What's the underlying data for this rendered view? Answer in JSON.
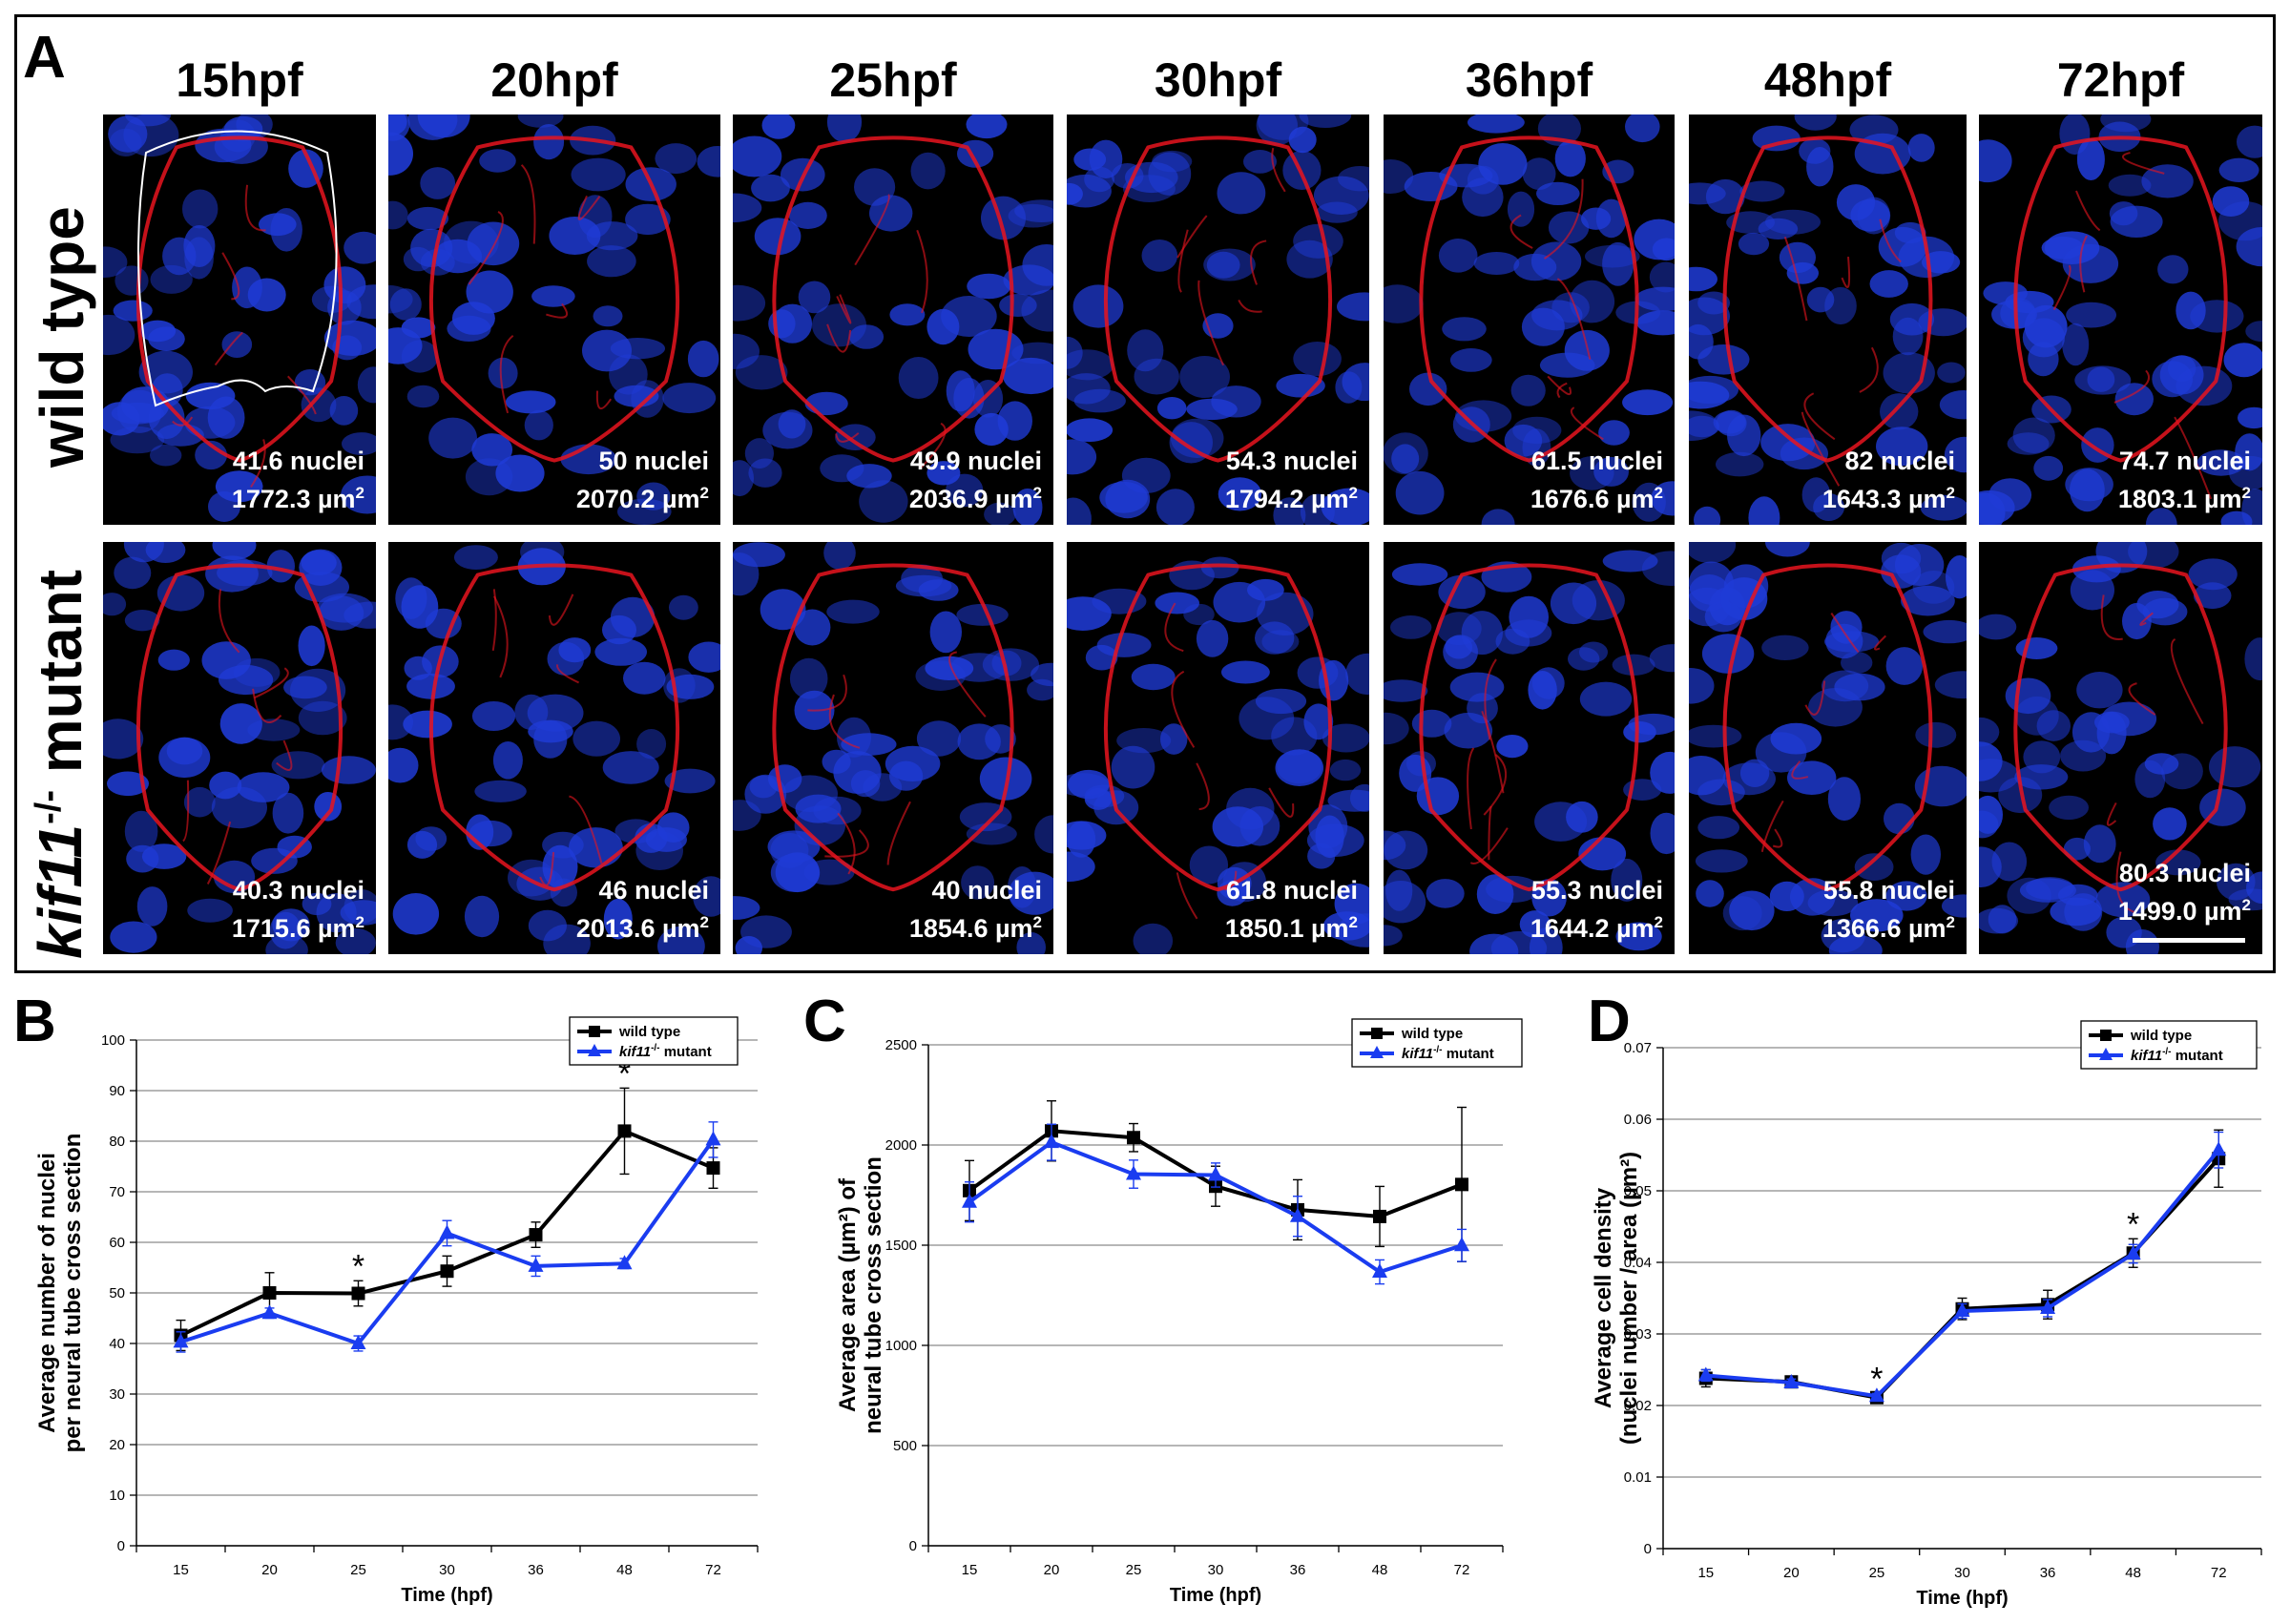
{
  "panel_a": {
    "label": "A",
    "row_labels": [
      "wild type",
      "mutant"
    ],
    "row_label_gene": "kif11",
    "row_label_sup": "-/-",
    "timepoints": [
      "15hpf",
      "20hpf",
      "25hpf",
      "30hpf",
      "36hpf",
      "48hpf",
      "72hpf"
    ],
    "wild_type": [
      {
        "nuclei": "41.6 nuclei",
        "area": "1772.3 µm",
        "sup": "2"
      },
      {
        "nuclei": "50 nuclei",
        "area": "2070.2 µm",
        "sup": "2"
      },
      {
        "nuclei": "49.9 nuclei",
        "area": "2036.9 µm",
        "sup": "2"
      },
      {
        "nuclei": "54.3 nuclei",
        "area": "1794.2 µm",
        "sup": "2"
      },
      {
        "nuclei": "61.5 nuclei",
        "area": "1676.6 µm",
        "sup": "2"
      },
      {
        "nuclei": "82 nuclei",
        "area": "1643.3 µm",
        "sup": "2"
      },
      {
        "nuclei": "74.7 nuclei",
        "area": "1803.1 µm",
        "sup": "2"
      }
    ],
    "mutant": [
      {
        "nuclei": "40.3 nuclei",
        "area": "1715.6 µm",
        "sup": "2"
      },
      {
        "nuclei": "46 nuclei",
        "area": "2013.6 µm",
        "sup": "2"
      },
      {
        "nuclei": "40 nuclei",
        "area": "1854.6 µm",
        "sup": "2"
      },
      {
        "nuclei": "61.8 nuclei",
        "area": "1850.1 µm",
        "sup": "2"
      },
      {
        "nuclei": "55.3 nuclei",
        "area": "1644.2 µm",
        "sup": "2"
      },
      {
        "nuclei": "55.8 nuclei",
        "area": "1366.6 µm",
        "sup": "2"
      },
      {
        "nuclei": "80.3 nuclei",
        "area": "1499.0 µm",
        "sup": "2"
      }
    ],
    "colors": {
      "nuclei_stain": "#1f3bd6",
      "membrane_stain": "#e8141e",
      "background": "#000000"
    }
  },
  "chart_data": [
    {
      "panel": "B",
      "type": "line",
      "categories": [
        "15",
        "20",
        "25",
        "30",
        "36",
        "48",
        "72"
      ],
      "xlabel": "Time (hpf)",
      "ylabel_lines": [
        "Average number of nuclei",
        "per neural tube cross section"
      ],
      "ylim": [
        0,
        100
      ],
      "yticks": [
        "0",
        "10",
        "20",
        "30",
        "40",
        "50",
        "60",
        "70",
        "80",
        "90",
        "100"
      ],
      "grid": true,
      "legend_position": "top-right",
      "legend": [
        {
          "name": "wild type"
        },
        {
          "name_gene": "kif11",
          "name_sup": "-/-",
          "name_rest": " mutant"
        }
      ],
      "series": [
        {
          "name": "wild type",
          "color": "#000000",
          "marker": "square",
          "values": [
            41.6,
            50,
            49.9,
            54.3,
            61.5,
            82,
            74.7
          ],
          "errors": [
            3.0,
            4.0,
            2.5,
            3.0,
            2.5,
            8.5,
            4.0
          ]
        },
        {
          "name": "kif11-/- mutant",
          "color": "#1a3cf0",
          "marker": "triangle",
          "values": [
            40.3,
            46,
            40,
            61.8,
            55.3,
            55.8,
            80.3
          ],
          "errors": [
            2.0,
            1.0,
            1.5,
            2.5,
            2.0,
            1.0,
            3.5
          ]
        }
      ],
      "significance": [
        {
          "category": "25",
          "label": "*"
        },
        {
          "category": "48",
          "label": "*"
        }
      ]
    },
    {
      "panel": "C",
      "type": "line",
      "categories": [
        "15",
        "20",
        "25",
        "30",
        "36",
        "48",
        "72"
      ],
      "xlabel": "Time (hpf)",
      "ylabel_lines": [
        "Average area (µm²) of",
        "neural tube cross section"
      ],
      "ylim": [
        0,
        2500
      ],
      "yticks": [
        "0",
        "500",
        "1000",
        "1500",
        "2000",
        "2500"
      ],
      "grid": true,
      "legend_position": "top-right",
      "legend": [
        {
          "name": "wild type"
        },
        {
          "name_gene": "kif11",
          "name_sup": "-/-",
          "name_rest": " mutant"
        }
      ],
      "series": [
        {
          "name": "wild type",
          "color": "#000000",
          "marker": "square",
          "values": [
            1772.3,
            2070.2,
            2036.9,
            1794.2,
            1676.6,
            1643.3,
            1803.1
          ],
          "errors": [
            150,
            150,
            70,
            100,
            150,
            150,
            385
          ]
        },
        {
          "name": "kif11-/- mutant",
          "color": "#1a3cf0",
          "marker": "triangle",
          "values": [
            1715.6,
            2013.6,
            1854.6,
            1850.1,
            1644.2,
            1366.6,
            1499.0
          ],
          "errors": [
            100,
            90,
            70,
            60,
            100,
            60,
            80
          ]
        }
      ],
      "significance": []
    },
    {
      "panel": "D",
      "type": "line",
      "categories": [
        "15",
        "20",
        "25",
        "30",
        "36",
        "48",
        "72"
      ],
      "xlabel": "Time (hpf)",
      "ylabel_lines": [
        "Average cell density",
        "(nuclei number / area (µm²)"
      ],
      "ylim": [
        0,
        0.07
      ],
      "yticks": [
        "0",
        "0.01",
        "0.02",
        "0.03",
        "0.04",
        "0.05",
        "0.06",
        "0.07"
      ],
      "grid": true,
      "legend_position": "top-right",
      "legend": [
        {
          "name": "wild type"
        },
        {
          "name_gene": "kif11",
          "name_sup": "-/-",
          "name_rest": " mutant"
        }
      ],
      "series": [
        {
          "name": "wild type",
          "color": "#000000",
          "marker": "square",
          "values": [
            0.0238,
            0.0233,
            0.0211,
            0.0335,
            0.0341,
            0.0413,
            0.0545
          ],
          "errors": [
            0.0012,
            0.0008,
            0.0005,
            0.0015,
            0.002,
            0.002,
            0.004
          ]
        },
        {
          "name": "kif11-/- mutant",
          "color": "#1a3cf0",
          "marker": "triangle",
          "values": [
            0.0242,
            0.0232,
            0.0213,
            0.0332,
            0.0336,
            0.0412,
            0.0557
          ],
          "errors": [
            0.0008,
            0.0005,
            0.0004,
            0.001,
            0.0012,
            0.0013,
            0.0025
          ]
        }
      ],
      "significance": [
        {
          "category": "25",
          "label": "*"
        },
        {
          "category": "48",
          "label": "*"
        }
      ]
    }
  ],
  "panel_labels": {
    "b": "B",
    "c": "C",
    "d": "D"
  }
}
